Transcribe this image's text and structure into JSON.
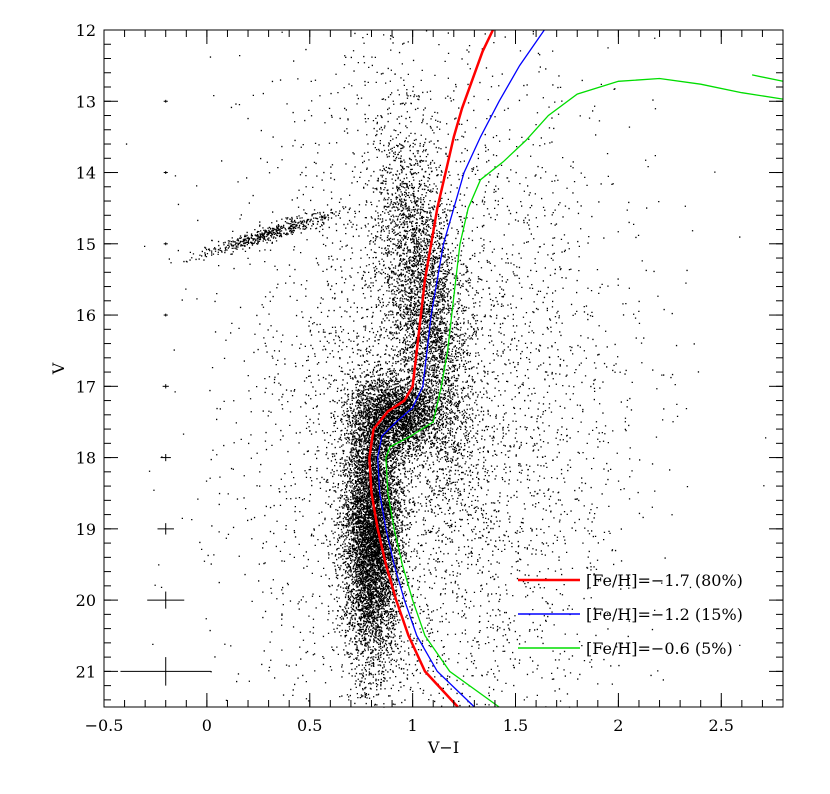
{
  "chart_data": {
    "type": "scatter",
    "title": "",
    "xlabel": "V−I",
    "ylabel": "V",
    "xlim": [
      -0.5,
      2.8
    ],
    "ylim": [
      21.5,
      12
    ],
    "y_inverted": true,
    "grid": false,
    "legend_position": "bottom-right",
    "x_ticks": [
      {
        "value": -0.5,
        "label": "−0.5"
      },
      {
        "value": 0,
        "label": "0"
      },
      {
        "value": 0.5,
        "label": "0.5"
      },
      {
        "value": 1,
        "label": "1"
      },
      {
        "value": 1.5,
        "label": "1.5"
      },
      {
        "value": 2,
        "label": "2"
      },
      {
        "value": 2.5,
        "label": "2.5"
      }
    ],
    "y_ticks": [
      {
        "value": 12,
        "label": "12"
      },
      {
        "value": 13,
        "label": "13"
      },
      {
        "value": 14,
        "label": "14"
      },
      {
        "value": 15,
        "label": "15"
      },
      {
        "value": 16,
        "label": "16"
      },
      {
        "value": 17,
        "label": "17"
      },
      {
        "value": 18,
        "label": "18"
      },
      {
        "value": 19,
        "label": "19"
      },
      {
        "value": 20,
        "label": "20"
      },
      {
        "value": 21,
        "label": "21"
      }
    ],
    "series": [
      {
        "name": "[Fe/H]=−1.7 (80%)",
        "color": "#ff0000",
        "points": [
          [
            1.39,
            12.0
          ],
          [
            1.34,
            12.3
          ],
          [
            1.29,
            12.7
          ],
          [
            1.24,
            13.1
          ],
          [
            1.2,
            13.5
          ],
          [
            1.16,
            14.0
          ],
          [
            1.12,
            14.5
          ],
          [
            1.09,
            15.0
          ],
          [
            1.06,
            15.5
          ],
          [
            1.04,
            16.0
          ],
          [
            1.02,
            16.5
          ],
          [
            1.0,
            17.0
          ],
          [
            0.96,
            17.2
          ],
          [
            0.88,
            17.35
          ],
          [
            0.81,
            17.6
          ],
          [
            0.79,
            18.0
          ],
          [
            0.8,
            18.5
          ],
          [
            0.83,
            19.0
          ],
          [
            0.87,
            19.5
          ],
          [
            0.92,
            20.0
          ],
          [
            0.98,
            20.5
          ],
          [
            1.06,
            21.0
          ],
          [
            1.22,
            21.5
          ]
        ]
      },
      {
        "name": "[Fe/H]=−1.2 (15%)",
        "color": "#0000ff",
        "points": [
          [
            1.64,
            12.0
          ],
          [
            1.52,
            12.5
          ],
          [
            1.42,
            13.0
          ],
          [
            1.33,
            13.5
          ],
          [
            1.25,
            14.0
          ],
          [
            1.2,
            14.5
          ],
          [
            1.15,
            15.0
          ],
          [
            1.12,
            15.5
          ],
          [
            1.09,
            16.0
          ],
          [
            1.07,
            16.5
          ],
          [
            1.05,
            17.0
          ],
          [
            1.0,
            17.3
          ],
          [
            0.92,
            17.5
          ],
          [
            0.85,
            17.7
          ],
          [
            0.83,
            18.0
          ],
          [
            0.84,
            18.5
          ],
          [
            0.87,
            19.0
          ],
          [
            0.91,
            19.5
          ],
          [
            0.96,
            20.0
          ],
          [
            1.02,
            20.5
          ],
          [
            1.12,
            21.0
          ],
          [
            1.3,
            21.5
          ]
        ]
      },
      {
        "name": "[Fe/H]=−0.6 (5%)",
        "color": "#00dd00",
        "points": [
          [
            2.8,
            12.97
          ],
          [
            2.6,
            12.88
          ],
          [
            2.4,
            12.76
          ],
          [
            2.2,
            12.68
          ],
          [
            2.0,
            12.72
          ],
          [
            1.8,
            12.9
          ],
          [
            1.66,
            13.2
          ],
          [
            1.55,
            13.55
          ],
          [
            1.44,
            13.85
          ],
          [
            1.33,
            14.1
          ],
          [
            1.27,
            14.5
          ],
          [
            1.23,
            15.0
          ],
          [
            1.21,
            15.5
          ],
          [
            1.19,
            16.0
          ],
          [
            1.17,
            16.5
          ],
          [
            1.14,
            17.0
          ],
          [
            1.1,
            17.5
          ],
          [
            0.99,
            17.7
          ],
          [
            0.89,
            17.85
          ],
          [
            0.87,
            18.0
          ],
          [
            0.88,
            18.5
          ],
          [
            0.91,
            19.0
          ],
          [
            0.95,
            19.5
          ],
          [
            1.0,
            20.0
          ],
          [
            1.06,
            20.5
          ],
          [
            1.18,
            21.0
          ],
          [
            1.42,
            21.5
          ]
        ]
      },
      {
        "name": "",
        "color": "#00dd00",
        "points": [
          [
            2.65,
            12.63
          ],
          [
            2.8,
            12.72
          ]
        ]
      }
    ],
    "error_bars": [
      {
        "x": -0.2,
        "y": 13.0,
        "xerr": 0.01,
        "yerr": 0.02
      },
      {
        "x": -0.2,
        "y": 14.0,
        "xerr": 0.01,
        "yerr": 0.02
      },
      {
        "x": -0.2,
        "y": 15.0,
        "xerr": 0.01,
        "yerr": 0.02
      },
      {
        "x": -0.2,
        "y": 16.0,
        "xerr": 0.01,
        "yerr": 0.02
      },
      {
        "x": -0.2,
        "y": 17.0,
        "xerr": 0.015,
        "yerr": 0.03
      },
      {
        "x": -0.2,
        "y": 18.0,
        "xerr": 0.025,
        "yerr": 0.05
      },
      {
        "x": -0.2,
        "y": 19.0,
        "xerr": 0.04,
        "yerr": 0.08
      },
      {
        "x": -0.2,
        "y": 20.0,
        "xerr": 0.09,
        "yerr": 0.12
      },
      {
        "x": -0.2,
        "y": 21.0,
        "xerr": 0.22,
        "yerr": 0.2
      }
    ],
    "point_cloud": {
      "color": "#000000",
      "regions": [
        {
          "name": "main-sequence-turnoff",
          "cx": 0.8,
          "cy": 19.0,
          "sx": 0.07,
          "sy": 0.9,
          "n": 9000
        },
        {
          "name": "subgiant-branch",
          "cx": 0.92,
          "cy": 17.4,
          "sx": 0.1,
          "sy": 0.45,
          "n": 2500
        },
        {
          "name": "red-giant-branch",
          "cx": 1.05,
          "cy": 15.8,
          "sx": 0.09,
          "sy": 1.2,
          "n": 3500
        },
        {
          "name": "horizontal-branch",
          "cx": 0.3,
          "cy": 14.85,
          "sx": 0.06,
          "sy": 0.15,
          "n": 500
        },
        {
          "name": "field-stars",
          "cx": 1.1,
          "cy": 17.5,
          "sx": 0.45,
          "sy": 2.6,
          "n": 5000
        }
      ]
    }
  }
}
